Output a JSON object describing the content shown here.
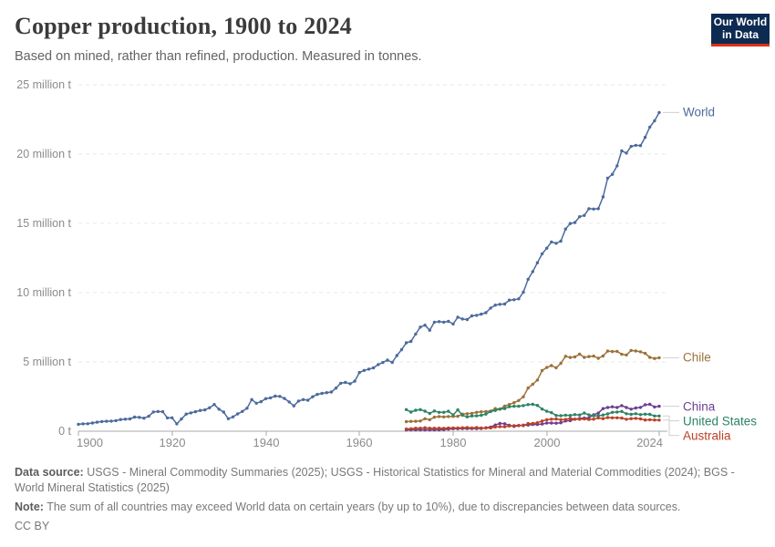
{
  "header": {
    "title": "Copper production, 1900 to 2024",
    "subtitle": "Based on mined, rather than refined, production. Measured in tonnes.",
    "logo_line1": "Our World",
    "logo_line2": "in Data",
    "logo_bg_color": "#0d2b52",
    "logo_accent_color": "#dc3018"
  },
  "axes": {
    "y_ticks": [
      "0 t",
      "5 million t",
      "10 million t",
      "15 million t",
      "20 million t",
      "25 million t"
    ],
    "x_ticks": [
      "1900",
      "1920",
      "1940",
      "1960",
      "1980",
      "2000",
      "2024"
    ]
  },
  "chart_data": {
    "type": "line",
    "title": "Copper production, 1900 to 2024",
    "subtitle": "Based on mined, rather than refined, production. Measured in tonnes.",
    "unit": "million tonnes",
    "x_range": [
      1900,
      2024
    ],
    "y_range": [
      0,
      25
    ],
    "grid": "dashed-horizontal",
    "legend_position": "right-of-line-ends",
    "series": [
      {
        "name": "World",
        "color": "#4C6A9C",
        "start_year": 1900,
        "values": [
          0.5,
          0.53,
          0.54,
          0.59,
          0.65,
          0.7,
          0.72,
          0.73,
          0.76,
          0.84,
          0.87,
          0.89,
          1.02,
          1.0,
          0.94,
          1.08,
          1.39,
          1.42,
          1.41,
          0.96,
          0.97,
          0.53,
          0.88,
          1.24,
          1.32,
          1.41,
          1.5,
          1.54,
          1.69,
          1.93,
          1.59,
          1.38,
          0.9,
          1.03,
          1.25,
          1.43,
          1.66,
          2.28,
          2.02,
          2.13,
          2.35,
          2.41,
          2.53,
          2.51,
          2.36,
          2.11,
          1.83,
          2.18,
          2.28,
          2.24,
          2.49,
          2.66,
          2.73,
          2.78,
          2.83,
          3.11,
          3.46,
          3.52,
          3.43,
          3.61,
          4.24,
          4.39,
          4.48,
          4.57,
          4.81,
          4.96,
          5.13,
          4.97,
          5.46,
          5.89,
          6.38,
          6.48,
          7.01,
          7.51,
          7.65,
          7.29,
          7.87,
          7.91,
          7.87,
          7.93,
          7.74,
          8.23,
          8.1,
          8.06,
          8.32,
          8.36,
          8.45,
          8.55,
          8.89,
          9.1,
          9.16,
          9.18,
          9.46,
          9.49,
          9.55,
          10.03,
          10.96,
          11.52,
          12.16,
          12.8,
          13.21,
          13.66,
          13.56,
          13.72,
          14.59,
          14.99,
          15.06,
          15.48,
          15.57,
          16.06,
          16.03,
          16.06,
          16.91,
          18.26,
          18.54,
          19.15,
          20.23,
          20.07,
          20.55,
          20.63,
          20.61,
          21.21,
          21.95,
          22.4,
          23.0
        ]
      },
      {
        "name": "Chile",
        "color": "#9C7139",
        "start_year": 1970,
        "values": [
          0.69,
          0.71,
          0.72,
          0.74,
          0.9,
          0.83,
          1.01,
          1.06,
          1.03,
          1.06,
          1.07,
          1.08,
          1.24,
          1.26,
          1.29,
          1.36,
          1.4,
          1.42,
          1.45,
          1.63,
          1.59,
          1.81,
          1.93,
          2.06,
          2.22,
          2.49,
          3.12,
          3.39,
          3.69,
          4.38,
          4.6,
          4.74,
          4.58,
          4.9,
          5.41,
          5.32,
          5.36,
          5.56,
          5.33,
          5.39,
          5.42,
          5.26,
          5.43,
          5.78,
          5.75,
          5.76,
          5.55,
          5.5,
          5.83,
          5.79,
          5.73,
          5.62,
          5.33,
          5.25,
          5.3
        ]
      },
      {
        "name": "China",
        "color": "#6D3E91",
        "start_year": 1970,
        "values": [
          0.09,
          0.1,
          0.1,
          0.1,
          0.1,
          0.1,
          0.1,
          0.1,
          0.11,
          0.15,
          0.18,
          0.18,
          0.19,
          0.19,
          0.19,
          0.19,
          0.2,
          0.25,
          0.3,
          0.45,
          0.56,
          0.54,
          0.43,
          0.35,
          0.4,
          0.44,
          0.44,
          0.49,
          0.49,
          0.52,
          0.59,
          0.59,
          0.58,
          0.61,
          0.74,
          0.76,
          0.87,
          0.92,
          0.95,
          0.96,
          1.19,
          1.31,
          1.63,
          1.71,
          1.76,
          1.71,
          1.85,
          1.71,
          1.59,
          1.68,
          1.72,
          1.91,
          1.94,
          1.75,
          1.8
        ]
      },
      {
        "name": "United States",
        "color": "#2C8465",
        "start_year": 1970,
        "values": [
          1.56,
          1.38,
          1.51,
          1.56,
          1.45,
          1.28,
          1.46,
          1.36,
          1.36,
          1.44,
          1.18,
          1.54,
          1.15,
          1.04,
          1.1,
          1.11,
          1.15,
          1.24,
          1.42,
          1.5,
          1.59,
          1.63,
          1.77,
          1.8,
          1.8,
          1.85,
          1.92,
          1.94,
          1.86,
          1.6,
          1.44,
          1.34,
          1.14,
          1.12,
          1.16,
          1.14,
          1.2,
          1.17,
          1.31,
          1.18,
          1.11,
          1.11,
          1.17,
          1.25,
          1.36,
          1.38,
          1.43,
          1.26,
          1.22,
          1.26,
          1.2,
          1.23,
          1.22,
          1.1,
          1.1
        ]
      },
      {
        "name": "Australia",
        "color": "#BC4025",
        "start_year": 1970,
        "values": [
          0.16,
          0.18,
          0.22,
          0.22,
          0.25,
          0.22,
          0.22,
          0.22,
          0.21,
          0.23,
          0.24,
          0.23,
          0.25,
          0.26,
          0.24,
          0.26,
          0.24,
          0.23,
          0.24,
          0.3,
          0.33,
          0.32,
          0.38,
          0.4,
          0.42,
          0.4,
          0.55,
          0.56,
          0.61,
          0.74,
          0.83,
          0.87,
          0.88,
          0.83,
          0.85,
          0.93,
          0.86,
          0.86,
          0.89,
          0.85,
          0.87,
          0.96,
          0.91,
          0.99,
          0.97,
          0.97,
          0.95,
          0.86,
          0.91,
          0.93,
          0.89,
          0.81,
          0.83,
          0.81,
          0.8
        ]
      }
    ]
  },
  "footer": {
    "data_source_label": "Data source:",
    "data_source_text": "USGS - Mineral Commodity Summaries (2025); USGS - Historical Statistics for Mineral and Material Commodities (2024); BGS - World Mineral Statistics (2025)",
    "note_label": "Note:",
    "note_text": "The sum of all countries may exceed World data on certain years (by up to 10%), due to discrepancies between data sources.",
    "license": "CC BY"
  }
}
